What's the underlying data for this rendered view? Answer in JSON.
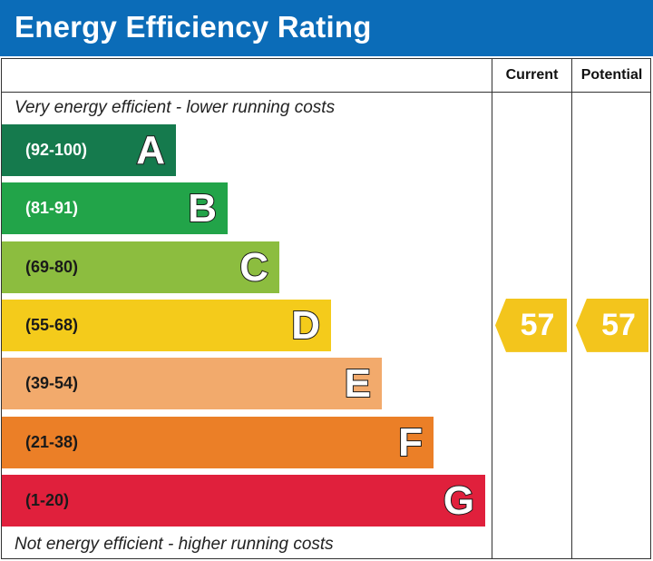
{
  "title": "Energy Efficiency Rating",
  "columns": {
    "current": "Current",
    "potential": "Potential"
  },
  "top_note": "Very energy efficient - lower running costs",
  "bottom_note": "Not energy efficient - higher running costs",
  "colors": {
    "header": "#0b6cb8",
    "rating_arrow": "#f3c51c"
  },
  "chart_data": {
    "type": "bar",
    "categories": [
      "A",
      "B",
      "C",
      "D",
      "E",
      "F",
      "G"
    ],
    "bands": [
      {
        "letter": "A",
        "range": "(92-100)",
        "color": "#157a4d",
        "range_color": "#ffffff"
      },
      {
        "letter": "B",
        "range": "(81-91)",
        "color": "#22a449",
        "range_color": "#ffffff"
      },
      {
        "letter": "C",
        "range": "(69-80)",
        "color": "#8cbd3f",
        "range_color": "#1a1a1a"
      },
      {
        "letter": "D",
        "range": "(55-68)",
        "color": "#f4cb1b",
        "range_color": "#1a1a1a"
      },
      {
        "letter": "E",
        "range": "(39-54)",
        "color": "#f2aa6c",
        "range_color": "#1a1a1a"
      },
      {
        "letter": "F",
        "range": "(21-38)",
        "color": "#eb7f27",
        "range_color": "#1a1a1a"
      },
      {
        "letter": "G",
        "range": "(1-20)",
        "color": "#e0203c",
        "range_color": "#1a1a1a"
      }
    ],
    "current": 57,
    "potential": 57
  }
}
